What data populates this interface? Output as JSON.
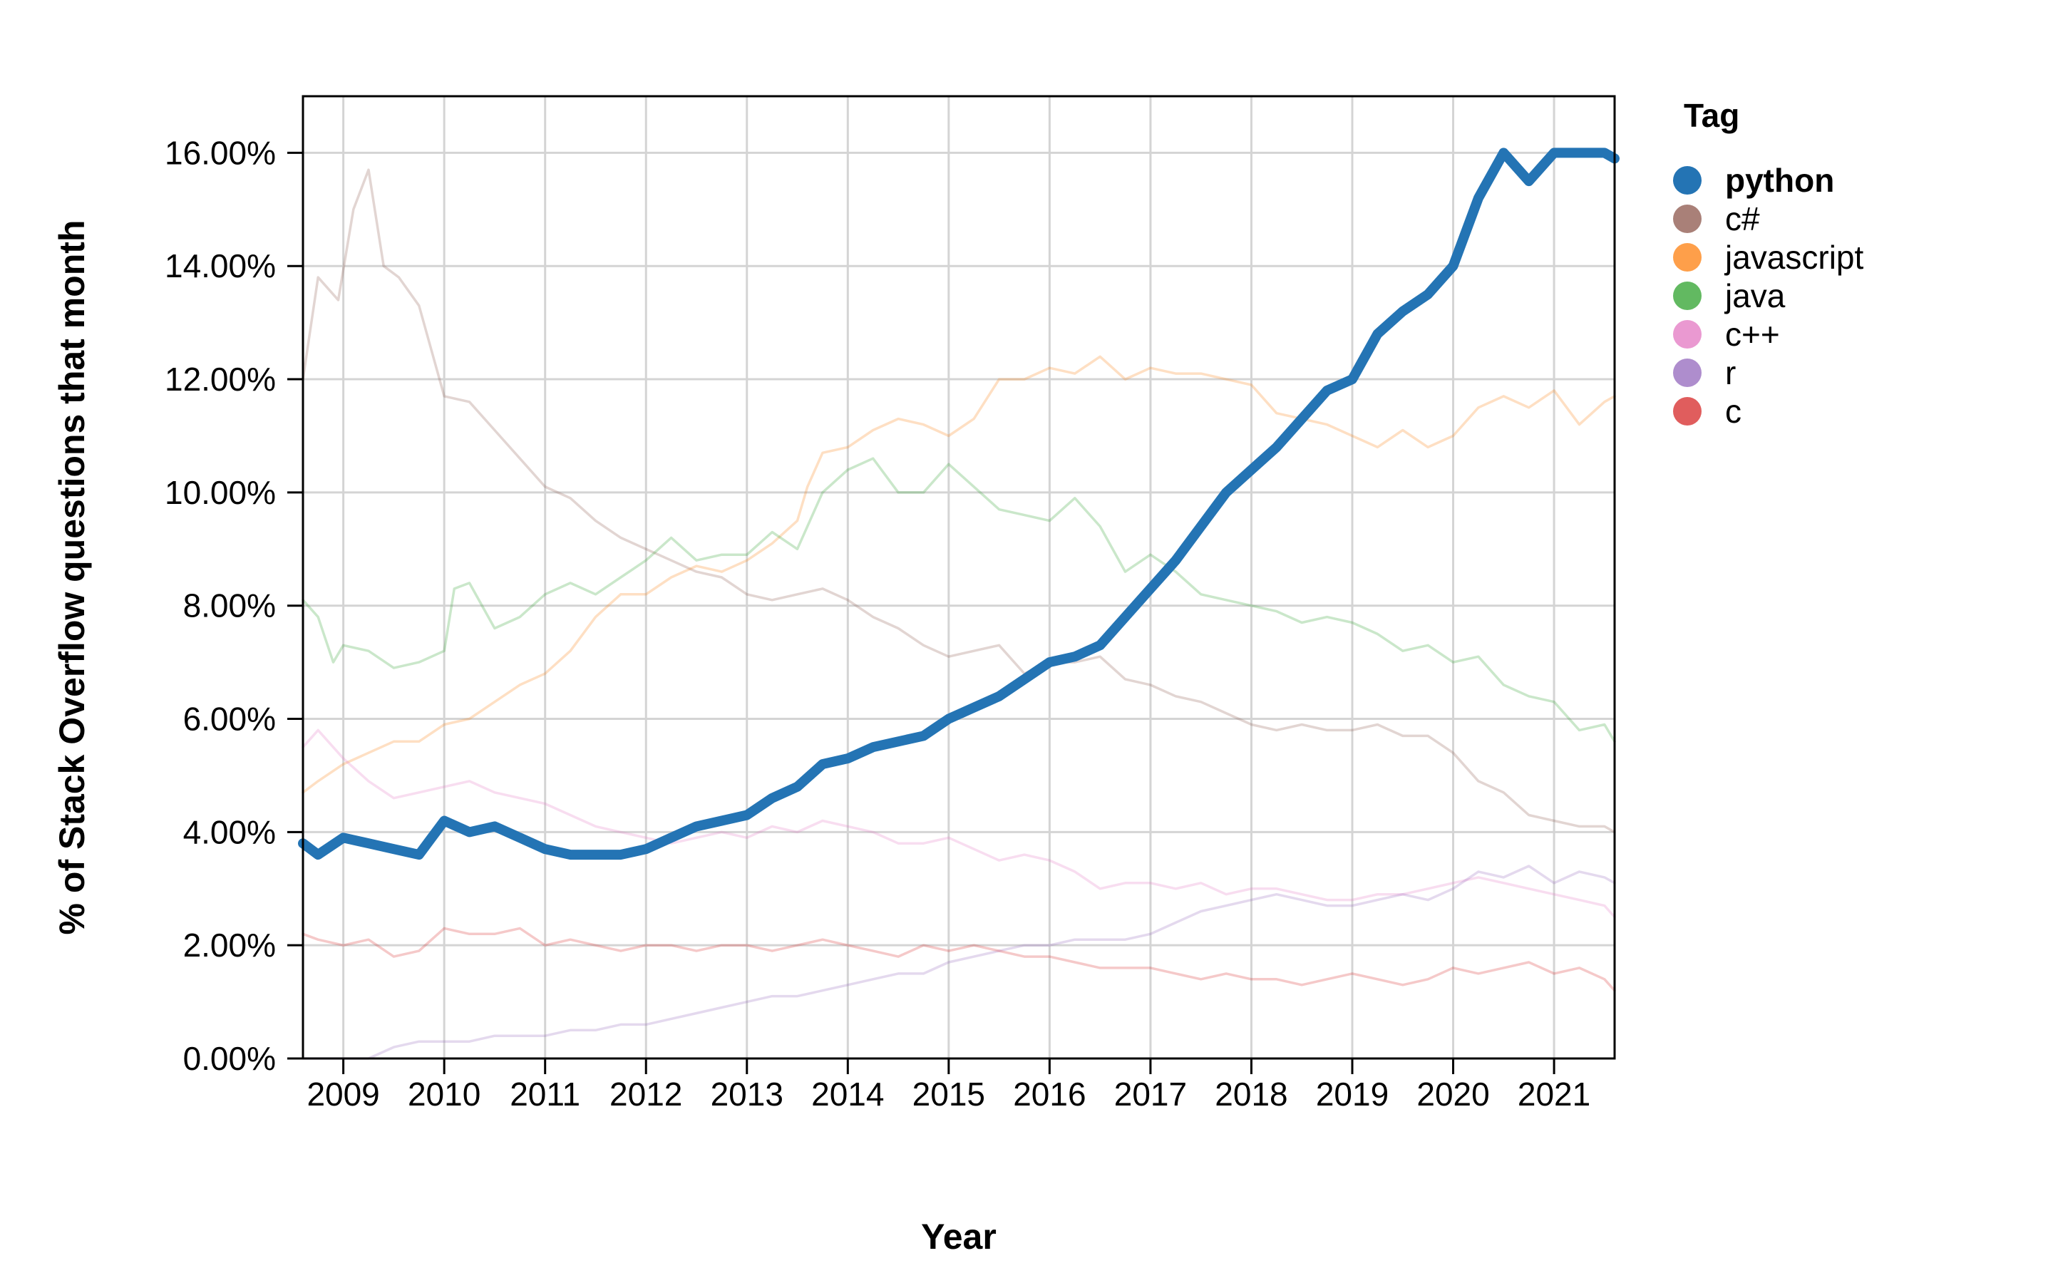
{
  "chart_data": {
    "type": "line",
    "title": "",
    "xlabel": "Year",
    "ylabel": "% of Stack Overflow questions that month",
    "legend_title": "Tag",
    "legend_position": "right",
    "grid": true,
    "x_range": [
      2008.6,
      2021.6
    ],
    "ylim": [
      0,
      0.17
    ],
    "x_ticks": [
      2009,
      2010,
      2011,
      2012,
      2013,
      2014,
      2015,
      2016,
      2017,
      2018,
      2019,
      2020,
      2021
    ],
    "x_tick_labels": [
      "2009",
      "2010",
      "2011",
      "2012",
      "2013",
      "2014",
      "2015",
      "2016",
      "2017",
      "2018",
      "2019",
      "2020",
      "2021"
    ],
    "y_ticks": [
      0,
      0.02,
      0.04,
      0.06,
      0.08,
      0.1,
      0.12,
      0.14,
      0.16
    ],
    "y_tick_labels": [
      "0.00%",
      "2.00%",
      "4.00%",
      "6.00%",
      "8.00%",
      "10.00%",
      "12.00%",
      "14.00%",
      "16.00%"
    ],
    "highlighted_series": "python",
    "series": [
      {
        "name": "python",
        "color": "#2474b4",
        "x": [
          2008.6,
          2008.75,
          2009.0,
          2009.25,
          2009.5,
          2009.75,
          2010.0,
          2010.25,
          2010.5,
          2010.75,
          2011.0,
          2011.25,
          2011.5,
          2011.75,
          2012.0,
          2012.25,
          2012.5,
          2012.75,
          2013.0,
          2013.25,
          2013.5,
          2013.75,
          2014.0,
          2014.25,
          2014.5,
          2014.75,
          2015.0,
          2015.25,
          2015.5,
          2015.75,
          2016.0,
          2016.25,
          2016.5,
          2016.75,
          2017.0,
          2017.25,
          2017.5,
          2017.75,
          2018.0,
          2018.25,
          2018.5,
          2018.75,
          2019.0,
          2019.25,
          2019.5,
          2019.75,
          2020.0,
          2020.25,
          2020.5,
          2020.75,
          2021.0,
          2021.25,
          2021.5,
          2021.6
        ],
        "values": [
          0.038,
          0.036,
          0.039,
          0.038,
          0.037,
          0.036,
          0.042,
          0.04,
          0.041,
          0.039,
          0.037,
          0.036,
          0.036,
          0.036,
          0.037,
          0.039,
          0.041,
          0.042,
          0.043,
          0.046,
          0.048,
          0.052,
          0.053,
          0.055,
          0.056,
          0.057,
          0.06,
          0.062,
          0.064,
          0.067,
          0.07,
          0.071,
          0.073,
          0.078,
          0.083,
          0.088,
          0.094,
          0.1,
          0.104,
          0.108,
          0.113,
          0.118,
          0.12,
          0.128,
          0.132,
          0.135,
          0.14,
          0.152,
          0.16,
          0.155,
          0.16,
          0.16,
          0.16,
          0.159
        ]
      },
      {
        "name": "c#",
        "color": "#8c564b",
        "x": [
          2008.6,
          2008.75,
          2008.95,
          2009.1,
          2009.25,
          2009.4,
          2009.55,
          2009.75,
          2010.0,
          2010.25,
          2010.5,
          2010.75,
          2011.0,
          2011.25,
          2011.5,
          2011.75,
          2012.0,
          2012.25,
          2012.5,
          2012.75,
          2013.0,
          2013.25,
          2013.5,
          2013.75,
          2014.0,
          2014.25,
          2014.5,
          2014.75,
          2015.0,
          2015.25,
          2015.5,
          2015.75,
          2016.0,
          2016.25,
          2016.5,
          2016.75,
          2017.0,
          2017.25,
          2017.5,
          2017.75,
          2018.0,
          2018.25,
          2018.5,
          2018.75,
          2019.0,
          2019.25,
          2019.5,
          2019.75,
          2020.0,
          2020.25,
          2020.5,
          2020.75,
          2021.0,
          2021.25,
          2021.5,
          2021.6
        ],
        "values": [
          0.12,
          0.138,
          0.134,
          0.15,
          0.157,
          0.14,
          0.138,
          0.133,
          0.117,
          0.116,
          0.111,
          0.106,
          0.101,
          0.099,
          0.095,
          0.092,
          0.09,
          0.088,
          0.086,
          0.085,
          0.082,
          0.081,
          0.082,
          0.083,
          0.081,
          0.078,
          0.076,
          0.073,
          0.071,
          0.072,
          0.073,
          0.068,
          0.07,
          0.07,
          0.071,
          0.067,
          0.066,
          0.064,
          0.063,
          0.061,
          0.059,
          0.058,
          0.059,
          0.058,
          0.058,
          0.059,
          0.057,
          0.057,
          0.054,
          0.049,
          0.047,
          0.043,
          0.042,
          0.041,
          0.041,
          0.04
        ]
      },
      {
        "name": "javascript",
        "color": "#fd7f0e",
        "x": [
          2008.6,
          2008.75,
          2009.0,
          2009.25,
          2009.5,
          2009.75,
          2010.0,
          2010.25,
          2010.5,
          2010.75,
          2011.0,
          2011.25,
          2011.5,
          2011.75,
          2012.0,
          2012.25,
          2012.5,
          2012.75,
          2013.0,
          2013.25,
          2013.5,
          2013.6,
          2013.75,
          2014.0,
          2014.25,
          2014.5,
          2014.75,
          2015.0,
          2015.25,
          2015.5,
          2015.75,
          2016.0,
          2016.25,
          2016.5,
          2016.75,
          2017.0,
          2017.25,
          2017.5,
          2017.75,
          2018.0,
          2018.25,
          2018.5,
          2018.75,
          2019.0,
          2019.25,
          2019.5,
          2019.75,
          2020.0,
          2020.25,
          2020.5,
          2020.75,
          2021.0,
          2021.25,
          2021.5,
          2021.6
        ],
        "values": [
          0.047,
          0.049,
          0.052,
          0.054,
          0.056,
          0.056,
          0.059,
          0.06,
          0.063,
          0.066,
          0.068,
          0.072,
          0.078,
          0.082,
          0.082,
          0.085,
          0.087,
          0.086,
          0.088,
          0.091,
          0.095,
          0.101,
          0.107,
          0.108,
          0.111,
          0.113,
          0.112,
          0.11,
          0.113,
          0.12,
          0.12,
          0.122,
          0.121,
          0.124,
          0.12,
          0.122,
          0.121,
          0.121,
          0.12,
          0.119,
          0.114,
          0.113,
          0.112,
          0.11,
          0.108,
          0.111,
          0.108,
          0.11,
          0.115,
          0.117,
          0.115,
          0.118,
          0.112,
          0.116,
          0.117
        ]
      },
      {
        "name": "java",
        "color": "#2da12c",
        "x": [
          2008.6,
          2008.75,
          2008.9,
          2009.0,
          2009.25,
          2009.5,
          2009.75,
          2010.0,
          2010.1,
          2010.25,
          2010.5,
          2010.75,
          2011.0,
          2011.25,
          2011.5,
          2011.75,
          2012.0,
          2012.25,
          2012.5,
          2012.75,
          2013.0,
          2013.25,
          2013.5,
          2013.75,
          2014.0,
          2014.25,
          2014.5,
          2014.75,
          2015.0,
          2015.25,
          2015.5,
          2015.75,
          2016.0,
          2016.25,
          2016.5,
          2016.75,
          2017.0,
          2017.25,
          2017.5,
          2017.75,
          2018.0,
          2018.25,
          2018.5,
          2018.75,
          2019.0,
          2019.25,
          2019.5,
          2019.75,
          2020.0,
          2020.25,
          2020.5,
          2020.75,
          2021.0,
          2021.25,
          2021.5,
          2021.6
        ],
        "values": [
          0.081,
          0.078,
          0.07,
          0.073,
          0.072,
          0.069,
          0.07,
          0.072,
          0.083,
          0.084,
          0.076,
          0.078,
          0.082,
          0.084,
          0.082,
          0.085,
          0.088,
          0.092,
          0.088,
          0.089,
          0.089,
          0.093,
          0.09,
          0.1,
          0.104,
          0.106,
          0.1,
          0.1,
          0.105,
          0.101,
          0.097,
          0.096,
          0.095,
          0.099,
          0.094,
          0.086,
          0.089,
          0.086,
          0.082,
          0.081,
          0.08,
          0.079,
          0.077,
          0.078,
          0.077,
          0.075,
          0.072,
          0.073,
          0.07,
          0.071,
          0.066,
          0.064,
          0.063,
          0.058,
          0.059,
          0.056
        ]
      },
      {
        "name": "c++",
        "color": "#e377c2",
        "x": [
          2008.6,
          2008.75,
          2009.0,
          2009.25,
          2009.5,
          2009.75,
          2010.0,
          2010.25,
          2010.5,
          2010.75,
          2011.0,
          2011.25,
          2011.5,
          2011.75,
          2012.0,
          2012.25,
          2012.5,
          2012.75,
          2013.0,
          2013.25,
          2013.5,
          2013.75,
          2014.0,
          2014.25,
          2014.5,
          2014.75,
          2015.0,
          2015.25,
          2015.5,
          2015.75,
          2016.0,
          2016.25,
          2016.5,
          2016.75,
          2017.0,
          2017.25,
          2017.5,
          2017.75,
          2018.0,
          2018.25,
          2018.5,
          2018.75,
          2019.0,
          2019.25,
          2019.5,
          2019.75,
          2020.0,
          2020.25,
          2020.5,
          2020.75,
          2021.0,
          2021.25,
          2021.5,
          2021.6
        ],
        "values": [
          0.055,
          0.058,
          0.053,
          0.049,
          0.046,
          0.047,
          0.048,
          0.049,
          0.047,
          0.046,
          0.045,
          0.043,
          0.041,
          0.04,
          0.039,
          0.038,
          0.039,
          0.04,
          0.039,
          0.041,
          0.04,
          0.042,
          0.041,
          0.04,
          0.038,
          0.038,
          0.039,
          0.037,
          0.035,
          0.036,
          0.035,
          0.033,
          0.03,
          0.031,
          0.031,
          0.03,
          0.031,
          0.029,
          0.03,
          0.03,
          0.029,
          0.028,
          0.028,
          0.029,
          0.029,
          0.03,
          0.031,
          0.032,
          0.031,
          0.03,
          0.029,
          0.028,
          0.027,
          0.025
        ]
      },
      {
        "name": "r",
        "color": "#9367bc",
        "x": [
          2008.6,
          2008.75,
          2009.0,
          2009.25,
          2009.5,
          2009.75,
          2010.0,
          2010.25,
          2010.5,
          2010.75,
          2011.0,
          2011.25,
          2011.5,
          2011.75,
          2012.0,
          2012.25,
          2012.5,
          2012.75,
          2013.0,
          2013.25,
          2013.5,
          2013.75,
          2014.0,
          2014.25,
          2014.5,
          2014.75,
          2015.0,
          2015.25,
          2015.5,
          2015.75,
          2016.0,
          2016.25,
          2016.5,
          2016.75,
          2017.0,
          2017.25,
          2017.5,
          2017.75,
          2018.0,
          2018.25,
          2018.5,
          2018.75,
          2019.0,
          2019.25,
          2019.5,
          2019.75,
          2020.0,
          2020.25,
          2020.5,
          2020.75,
          2021.0,
          2021.25,
          2021.5,
          2021.6
        ],
        "values": [
          0.0,
          0.0,
          0.0,
          0.0,
          0.002,
          0.003,
          0.003,
          0.003,
          0.004,
          0.004,
          0.004,
          0.005,
          0.005,
          0.006,
          0.006,
          0.007,
          0.008,
          0.009,
          0.01,
          0.011,
          0.011,
          0.012,
          0.013,
          0.014,
          0.015,
          0.015,
          0.017,
          0.018,
          0.019,
          0.02,
          0.02,
          0.021,
          0.021,
          0.021,
          0.022,
          0.024,
          0.026,
          0.027,
          0.028,
          0.029,
          0.028,
          0.027,
          0.027,
          0.028,
          0.029,
          0.028,
          0.03,
          0.033,
          0.032,
          0.034,
          0.031,
          0.033,
          0.032,
          0.031
        ]
      },
      {
        "name": "c",
        "color": "#d62727",
        "x": [
          2008.6,
          2008.75,
          2009.0,
          2009.25,
          2009.5,
          2009.75,
          2010.0,
          2010.25,
          2010.5,
          2010.75,
          2011.0,
          2011.25,
          2011.5,
          2011.75,
          2012.0,
          2012.25,
          2012.5,
          2012.75,
          2013.0,
          2013.25,
          2013.5,
          2013.75,
          2014.0,
          2014.25,
          2014.5,
          2014.75,
          2015.0,
          2015.25,
          2015.5,
          2015.75,
          2016.0,
          2016.25,
          2016.5,
          2016.75,
          2017.0,
          2017.25,
          2017.5,
          2017.75,
          2018.0,
          2018.25,
          2018.5,
          2018.75,
          2019.0,
          2019.25,
          2019.5,
          2019.75,
          2020.0,
          2020.25,
          2020.5,
          2020.75,
          2021.0,
          2021.25,
          2021.5,
          2021.6
        ],
        "values": [
          0.022,
          0.021,
          0.02,
          0.021,
          0.018,
          0.019,
          0.023,
          0.022,
          0.022,
          0.023,
          0.02,
          0.021,
          0.02,
          0.019,
          0.02,
          0.02,
          0.019,
          0.02,
          0.02,
          0.019,
          0.02,
          0.021,
          0.02,
          0.019,
          0.018,
          0.02,
          0.019,
          0.02,
          0.019,
          0.018,
          0.018,
          0.017,
          0.016,
          0.016,
          0.016,
          0.015,
          0.014,
          0.015,
          0.014,
          0.014,
          0.013,
          0.014,
          0.015,
          0.014,
          0.013,
          0.014,
          0.016,
          0.015,
          0.016,
          0.017,
          0.015,
          0.016,
          0.014,
          0.012
        ]
      }
    ]
  }
}
